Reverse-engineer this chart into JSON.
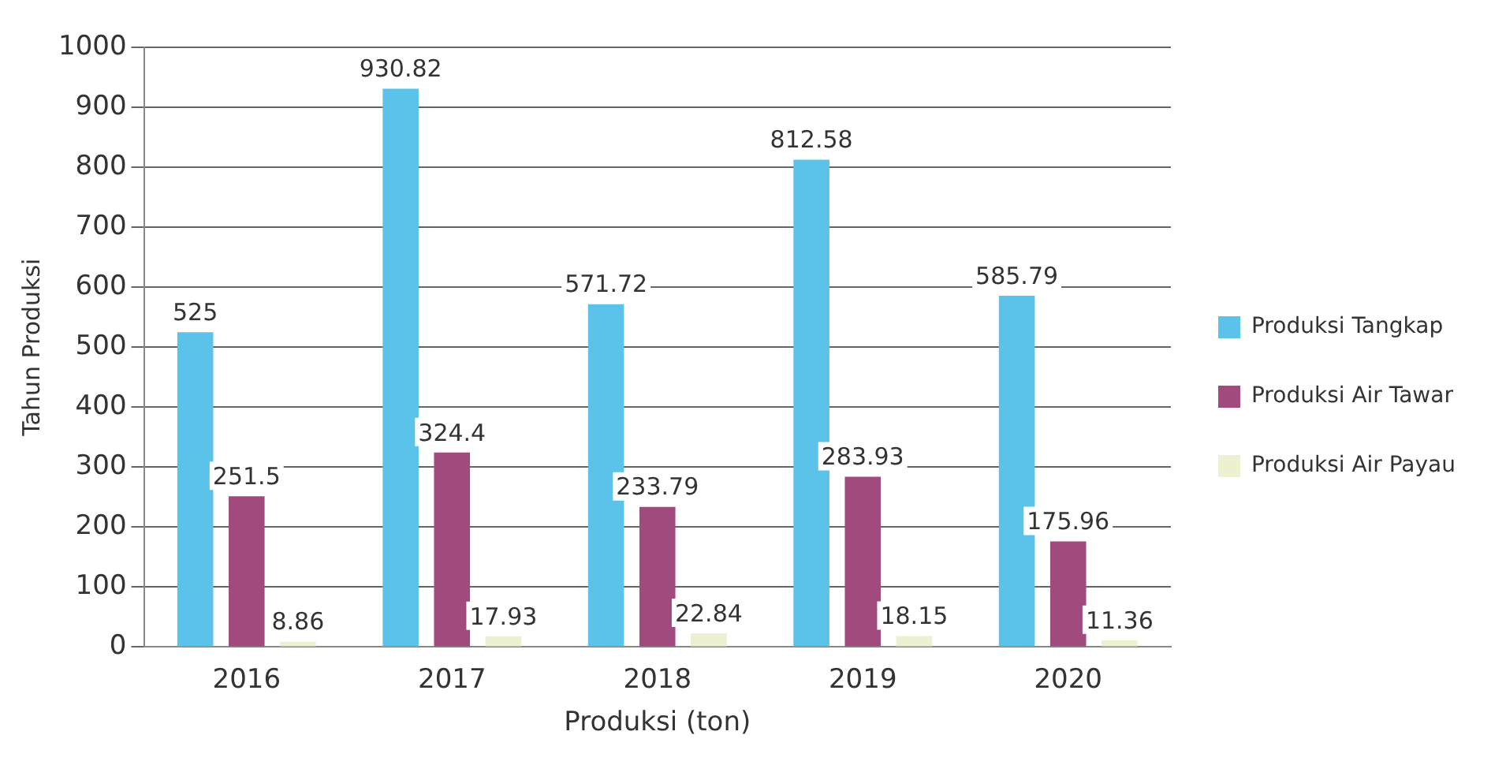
{
  "chart_data": {
    "type": "bar",
    "xlabel": "Produksi (ton)",
    "ylabel": "Tahun Produksi",
    "categories": [
      "2016",
      "2017",
      "2018",
      "2019",
      "2020"
    ],
    "series": [
      {
        "name": "Produksi Tangkap",
        "color": "#5bc3ea",
        "values": [
          525,
          930.82,
          571.72,
          812.58,
          585.79
        ]
      },
      {
        "name": "Produksi Air Tawar",
        "color": "#a04a7e",
        "values": [
          251.5,
          324.4,
          233.79,
          283.93,
          175.96
        ]
      },
      {
        "name": "Produksi Air Payau",
        "color": "#eef0d2",
        "values": [
          8.86,
          17.93,
          22.84,
          18.15,
          11.36
        ]
      }
    ],
    "ylim": [
      0,
      1000
    ],
    "yticks": [
      0,
      100,
      200,
      300,
      400,
      500,
      600,
      700,
      800,
      900,
      1000
    ],
    "grid": "y",
    "legend": "right",
    "data_labels": true
  }
}
